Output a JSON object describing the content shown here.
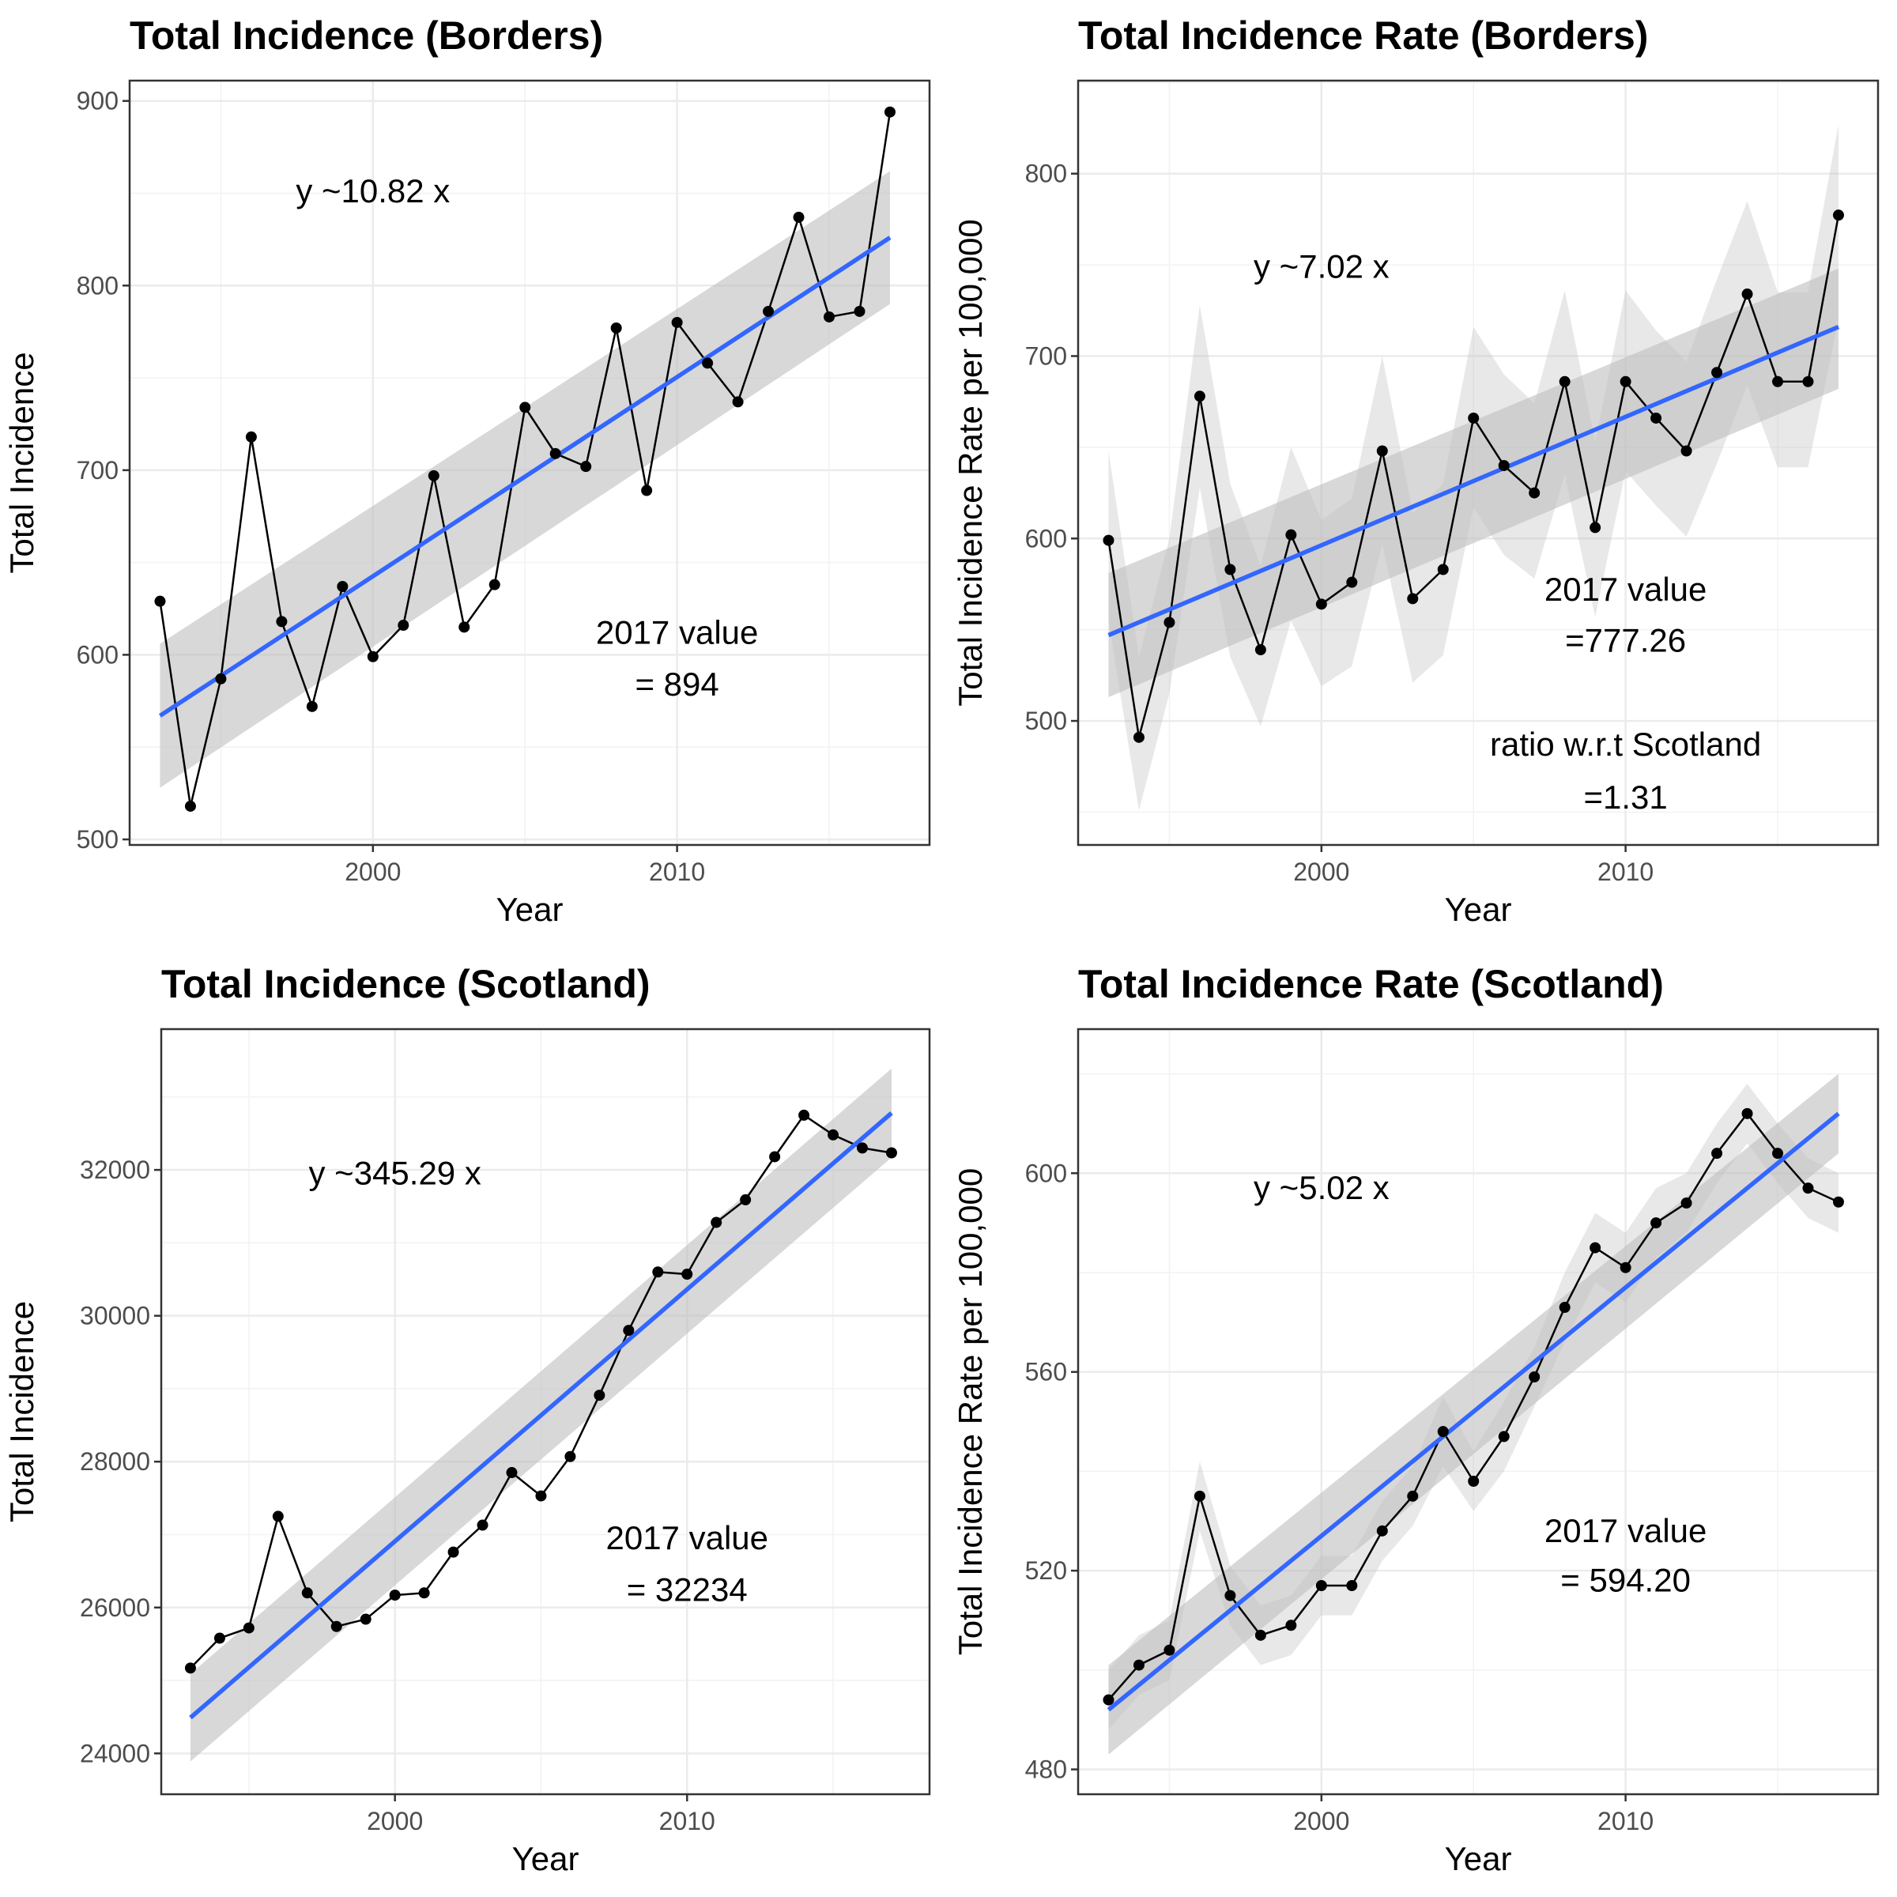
{
  "chart_data": [
    {
      "type": "line",
      "title": "Total Incidence (Borders)",
      "xlabel": "Year",
      "ylabel": "Total Incidence",
      "xlim": [
        1992,
        2018.3
      ],
      "ylim": [
        497,
        911
      ],
      "xticks": [
        2000,
        2010
      ],
      "yticks": [
        500,
        600,
        700,
        800,
        900
      ],
      "grid": true,
      "x": [
        1993,
        1994,
        1995,
        1996,
        1997,
        1998,
        1999,
        2000,
        2001,
        2002,
        2003,
        2004,
        2005,
        2006,
        2007,
        2008,
        2009,
        2010,
        2011,
        2012,
        2013,
        2014,
        2015,
        2016,
        2017
      ],
      "series": [
        {
          "values": [
            629,
            518,
            587,
            718,
            618,
            572,
            637,
            599,
            616,
            697,
            615,
            638,
            734,
            709,
            702,
            777,
            689,
            780,
            758,
            737,
            786,
            837,
            783,
            786,
            894
          ]
        }
      ],
      "trend": {
        "x": [
          1993,
          2017
        ],
        "y": [
          567,
          826
        ],
        "ci_lower": [
          528,
          790
        ],
        "ci_upper": [
          606,
          862
        ]
      },
      "colors": {
        "line": "#000000",
        "trend": "#3366FF",
        "band": "#BEBEBE"
      },
      "annotations": [
        {
          "text": "y ~10.82 x",
          "x": 2000,
          "y": 851
        },
        {
          "text": "2017 value",
          "x": 2010,
          "y": 612
        },
        {
          "text": "= 894",
          "x": 2010,
          "y": 584
        }
      ]
    },
    {
      "type": "line",
      "title": "Total Incidence Rate (Borders)",
      "xlabel": "Year",
      "ylabel": "Total Incidence Rate per 100,000",
      "xlim": [
        1992,
        2018.3
      ],
      "ylim": [
        432,
        851
      ],
      "xticks": [
        2000,
        2010
      ],
      "yticks": [
        500,
        600,
        700,
        800
      ],
      "grid": true,
      "x": [
        1993,
        1994,
        1995,
        1996,
        1997,
        1998,
        1999,
        2000,
        2001,
        2002,
        2003,
        2004,
        2005,
        2006,
        2007,
        2008,
        2009,
        2010,
        2011,
        2012,
        2013,
        2014,
        2015,
        2016,
        2017
      ],
      "series": [
        {
          "values": [
            599,
            491,
            554,
            678,
            583,
            539,
            602,
            564,
            576,
            648,
            567,
            583,
            666,
            640,
            625,
            686,
            606,
            686,
            666,
            648,
            691,
            734,
            686,
            686,
            777.26
          ]
        }
      ],
      "trend": {
        "x": [
          1993,
          2017
        ],
        "y": [
          547,
          716
        ],
        "ci_lower": [
          513,
          682
        ],
        "ci_upper": [
          581,
          748
        ]
      },
      "point_band": {
        "lower": [
          555,
          451,
          515,
          628,
          535,
          497,
          555,
          519,
          530,
          597,
          521,
          536,
          617,
          591,
          578,
          635,
          557,
          637,
          618,
          601,
          641,
          684,
          639,
          639,
          720
        ],
        "upper": [
          648,
          535,
          600,
          728,
          630,
          585,
          650,
          610,
          622,
          700,
          614,
          630,
          716,
          690,
          674,
          736,
          653,
          736,
          714,
          697,
          742,
          785,
          735,
          735,
          827
        ]
      },
      "colors": {
        "line": "#000000",
        "trend": "#3366FF",
        "band": "#BEBEBE"
      },
      "annotations": [
        {
          "text": "y ~7.02 x",
          "x": 2000,
          "y": 749
        },
        {
          "text": "2017 value",
          "x": 2010,
          "y": 572
        },
        {
          "text": "=777.26",
          "x": 2010,
          "y": 544
        },
        {
          "text": "ratio w.r.t Scotland",
          "x": 2010,
          "y": 487
        },
        {
          "text": "=1.31",
          "x": 2010,
          "y": 458
        }
      ]
    },
    {
      "type": "line",
      "title": "Total Incidence (Scotland)",
      "xlabel": "Year",
      "ylabel": "Total Incidence",
      "xlim": [
        1992,
        2018.3
      ],
      "ylim": [
        23440,
        33930
      ],
      "xticks": [
        2000,
        2010
      ],
      "yticks": [
        24000,
        26000,
        28000,
        30000,
        32000
      ],
      "grid": true,
      "x": [
        1993,
        1994,
        1995,
        1996,
        1997,
        1998,
        1999,
        2000,
        2001,
        2002,
        2003,
        2004,
        2005,
        2006,
        2007,
        2008,
        2009,
        2010,
        2011,
        2012,
        2013,
        2014,
        2015,
        2016,
        2017
      ],
      "series": [
        {
          "values": [
            25170,
            25580,
            25720,
            27250,
            26200,
            25740,
            25840,
            26170,
            26200,
            26760,
            27130,
            27850,
            27530,
            28070,
            28910,
            29800,
            30600,
            30570,
            31280,
            31590,
            32180,
            32750,
            32480,
            32300,
            32234
          ]
        }
      ],
      "trend": {
        "x": [
          1993,
          2017
        ],
        "y": [
          24490,
          32780
        ],
        "ci_lower": [
          23890,
          32170
        ],
        "ci_upper": [
          25090,
          33390
        ]
      },
      "colors": {
        "line": "#000000",
        "trend": "#3366FF",
        "band": "#BEBEBE"
      },
      "annotations": [
        {
          "text": "y ~345.29 x",
          "x": 2000,
          "y": 31950
        },
        {
          "text": "2017 value",
          "x": 2010,
          "y": 26950
        },
        {
          "text": "= 32234",
          "x": 2010,
          "y": 26240
        }
      ]
    },
    {
      "type": "line",
      "title": "Total Incidence Rate (Scotland)",
      "xlabel": "Year",
      "ylabel": "Total Incidence Rate per 100,000",
      "xlim": [
        1992,
        2018.3
      ],
      "ylim": [
        475,
        629
      ],
      "xticks": [
        2000,
        2010
      ],
      "yticks": [
        480,
        520,
        560,
        600
      ],
      "grid": true,
      "x": [
        1993,
        1994,
        1995,
        1996,
        1997,
        1998,
        1999,
        2000,
        2001,
        2002,
        2003,
        2004,
        2005,
        2006,
        2007,
        2008,
        2009,
        2010,
        2011,
        2012,
        2013,
        2014,
        2015,
        2016,
        2017
      ],
      "series": [
        {
          "values": [
            494,
            501,
            504,
            535,
            515,
            507,
            509,
            517,
            517,
            528,
            535,
            548,
            538,
            547,
            559,
            573,
            585,
            581,
            590,
            594,
            604,
            612,
            604,
            597,
            594.2
          ]
        }
      ],
      "trend": {
        "x": [
          1993,
          2017
        ],
        "y": [
          492,
          612
        ],
        "ci_lower": [
          483,
          604
        ],
        "ci_upper": [
          501,
          620
        ]
      },
      "point_band": {
        "lower": [
          488,
          495,
          498,
          528,
          509,
          501,
          503,
          511,
          511,
          522,
          529,
          541,
          532,
          540,
          553,
          566,
          578,
          574,
          583,
          588,
          598,
          606,
          598,
          591,
          588
        ],
        "upper": [
          500,
          507,
          510,
          542,
          521,
          513,
          515,
          523,
          523,
          534,
          541,
          555,
          544,
          554,
          565,
          580,
          592,
          588,
          597,
          600,
          610,
          618,
          610,
          603,
          600
        ]
      },
      "colors": {
        "line": "#000000",
        "trend": "#3366FF",
        "band": "#BEBEBE"
      },
      "annotations": [
        {
          "text": "y ~5.02 x",
          "x": 2000,
          "y": 597
        },
        {
          "text": "2017 value",
          "x": 2010,
          "y": 528
        },
        {
          "text": "= 594.20",
          "x": 2010,
          "y": 518
        }
      ]
    }
  ]
}
